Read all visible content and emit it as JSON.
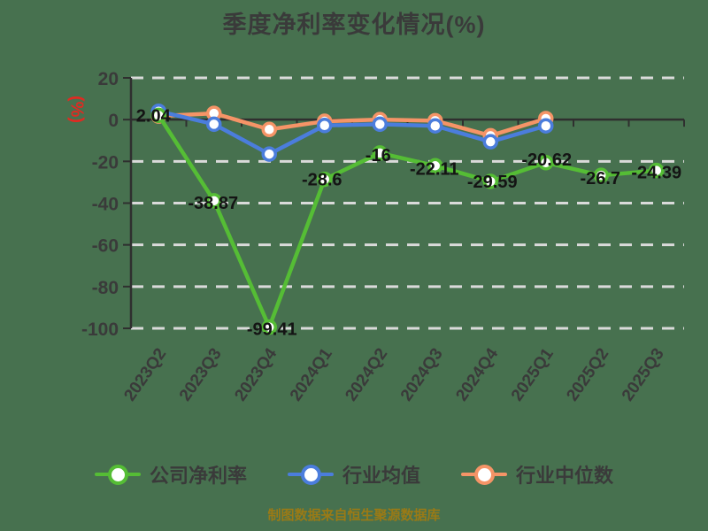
{
  "footer": "制图数据来自恒生聚源数据库",
  "chart_data": {
    "type": "line",
    "title": "季度净利率变化情况(%)",
    "ylabel": "(%)",
    "xlabel": "",
    "categories": [
      "2023Q2",
      "2023Q3",
      "2023Q4",
      "2024Q1",
      "2024Q2",
      "2024Q3",
      "2024Q4",
      "2025Q1",
      "2025Q2",
      "2025Q3"
    ],
    "yticks": [
      20,
      0,
      -20,
      -40,
      -60,
      -80,
      -100
    ],
    "ylim": [
      -100,
      20
    ],
    "grid": "horizontal-dashed",
    "grid_color": "#DADADA",
    "axis_color": "#2F2F2F",
    "legend_position": "bottom",
    "series": [
      {
        "name": "公司净利率",
        "color": "#55BD35",
        "values": [
          2.04,
          -38.87,
          -99.41,
          -28.6,
          -16,
          -22.11,
          -29.59,
          -20.62,
          -26.7,
          -24.39
        ],
        "labels": [
          "2.04",
          "-38.87",
          "-99.41",
          "-28.6",
          "-16",
          "-22.11",
          "-29.59",
          "-20.62",
          "-26.7",
          "-24.39"
        ],
        "label_offsets": [
          [
            -6,
            0
          ],
          [
            -1,
            2
          ],
          [
            3,
            2
          ],
          [
            -3,
            0
          ],
          [
            -2,
            2
          ],
          [
            -1,
            3
          ],
          [
            2,
            0
          ],
          [
            1,
            -4
          ],
          [
            -1,
            3
          ],
          [
            0,
            2
          ]
        ]
      },
      {
        "name": "行业均值",
        "color": "#4B7DDC",
        "values": [
          4,
          -2.2,
          -16.5,
          -2.8,
          -2.2,
          -3,
          -10.6,
          -3,
          null,
          null
        ]
      },
      {
        "name": "行业中位数",
        "color": "#F59467",
        "values": [
          1.7,
          3,
          -4.7,
          -0.8,
          0,
          -0.5,
          -7.7,
          0.5,
          null,
          null
        ]
      }
    ]
  }
}
